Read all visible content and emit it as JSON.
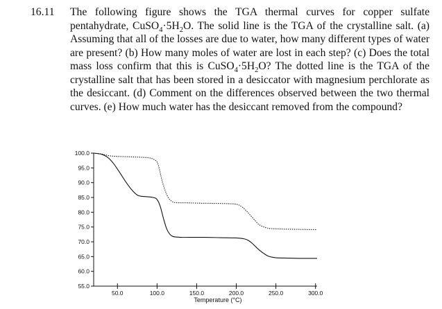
{
  "problem": {
    "number": "16.11",
    "paragraph": [
      {
        "t": "The following figure shows the TGA thermal curves for copper sulfate pentahydrate, CuSO"
      },
      {
        "sub": "4"
      },
      {
        "t": "·5H"
      },
      {
        "sub": "2"
      },
      {
        "t": "O. The solid line is the TGA of the crystalline salt. (a) Assuming that all of the losses are due to water, how many different types of water are present? (b) How many moles of water are lost in each step? (c) Does the total mass loss confirm that this is CuSO"
      },
      {
        "sub": "4"
      },
      {
        "t": "·5H"
      },
      {
        "sub": "2"
      },
      {
        "t": "O? The dotted line is the TGA of the crystalline salt that has been stored in a desiccator with magnesium perchlorate as the desiccant. (d) Comment on the differences observed between the two thermal curves. (e) How much water has the desiccant removed from the compound?"
      }
    ]
  },
  "chart_data": {
    "type": "line",
    "title": "",
    "xlabel": "Temperature (°C)",
    "ylabel": "",
    "xlim": [
      20,
      302
    ],
    "ylim": [
      55,
      100
    ],
    "x_ticks": [
      50,
      100,
      150,
      200,
      250,
      300
    ],
    "x_tick_labels": [
      "50.0",
      "100.0",
      "150.0",
      "200.0",
      "250.0",
      "300.0"
    ],
    "y_ticks": [
      100,
      95,
      90,
      85,
      80,
      75,
      70,
      65,
      60,
      55
    ],
    "y_tick_labels": [
      "100.0",
      "95.0",
      "90.0",
      "85.0",
      "80.0",
      "75.0",
      "70.0",
      "65.0",
      "60.0",
      "55.0"
    ],
    "grid": false,
    "series": [
      {
        "style": "solid",
        "x": [
          20,
          30,
          38,
          45,
          52,
          60,
          68,
          75,
          80,
          85,
          95,
          100,
          104,
          108,
          112,
          116,
          120,
          125,
          130,
          140,
          160,
          180,
          200,
          210,
          215,
          220,
          225,
          230,
          235,
          240,
          245,
          250,
          260,
          280,
          302
        ],
        "y": [
          100,
          99.6,
          98.5,
          96.5,
          93.8,
          90.5,
          87.6,
          85.8,
          85.4,
          85.3,
          85.0,
          84.3,
          82.0,
          78.0,
          74.5,
          72.6,
          71.8,
          71.6,
          71.5,
          71.5,
          71.5,
          71.4,
          71.3,
          71.0,
          70.5,
          69.5,
          68.2,
          67.0,
          66.0,
          65.2,
          64.8,
          64.6,
          64.5,
          64.4,
          64.4
        ]
      },
      {
        "style": "dotted",
        "x": [
          20,
          30,
          40,
          50,
          60,
          70,
          80,
          90,
          95,
          100,
          103,
          106,
          110,
          114,
          118,
          122,
          128,
          135,
          150,
          170,
          190,
          200,
          205,
          210,
          215,
          220,
          225,
          230,
          240,
          250,
          260,
          280,
          302
        ],
        "y": [
          100,
          99.7,
          99.1,
          98.9,
          98.8,
          98.7,
          98.6,
          98.4,
          98.0,
          97.0,
          94.5,
          91.0,
          87.5,
          85.0,
          83.8,
          83.3,
          83.2,
          83.2,
          83.1,
          83.0,
          82.9,
          82.7,
          82.2,
          81.2,
          79.8,
          78.3,
          76.8,
          75.6,
          74.6,
          74.4,
          74.3,
          74.2,
          74.1
        ]
      }
    ]
  }
}
